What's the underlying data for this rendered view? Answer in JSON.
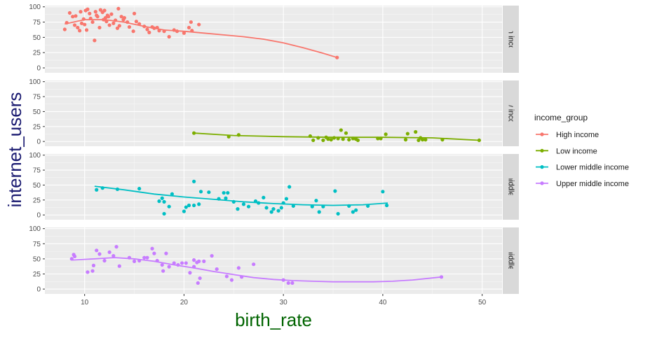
{
  "chart_data": {
    "type": "scatter",
    "xlabel": "birth_rate",
    "ylabel": "internet_users",
    "xlim": [
      6,
      52
    ],
    "ylim": [
      -8,
      102
    ],
    "x_ticks": [
      10,
      20,
      30,
      40,
      50
    ],
    "y_ticks": [
      0,
      25,
      50,
      75,
      100
    ],
    "facet_layout": "rows",
    "grid": true,
    "legend": {
      "title": "income_group",
      "position": "right",
      "entries": [
        "High income",
        "Low income",
        "Lower middle income",
        "Upper middle income"
      ]
    },
    "colors": {
      "High income": "#F8766D",
      "Low income": "#7CAE00",
      "Lower middle income": "#00BFC4",
      "Upper middle income": "#C77CFF",
      "panel_bg": "#EBEBEB",
      "strip_bg": "#D9D9D9",
      "xlabel_color": "#006400",
      "ylabel_color": "#191970"
    },
    "series": [
      {
        "name": "High income",
        "points": [
          [
            8.0,
            63
          ],
          [
            8.2,
            74
          ],
          [
            8.5,
            90
          ],
          [
            8.8,
            84
          ],
          [
            9.0,
            70
          ],
          [
            9.1,
            85
          ],
          [
            9.3,
            66
          ],
          [
            9.5,
            61
          ],
          [
            9.6,
            92
          ],
          [
            9.7,
            73
          ],
          [
            9.9,
            80
          ],
          [
            10.0,
            71
          ],
          [
            10.1,
            94
          ],
          [
            10.2,
            62
          ],
          [
            10.3,
            96
          ],
          [
            10.5,
            89
          ],
          [
            10.6,
            81
          ],
          [
            10.8,
            75
          ],
          [
            11.0,
            45
          ],
          [
            11.1,
            92
          ],
          [
            11.2,
            86
          ],
          [
            11.3,
            84
          ],
          [
            11.5,
            66
          ],
          [
            11.6,
            95
          ],
          [
            11.8,
            91
          ],
          [
            11.9,
            79
          ],
          [
            12.0,
            94
          ],
          [
            12.1,
            82
          ],
          [
            12.2,
            76
          ],
          [
            12.3,
            86
          ],
          [
            12.4,
            84
          ],
          [
            12.5,
            70
          ],
          [
            12.7,
            88
          ],
          [
            12.9,
            73
          ],
          [
            13.1,
            78
          ],
          [
            13.3,
            65
          ],
          [
            13.4,
            97
          ],
          [
            13.5,
            69
          ],
          [
            13.7,
            84
          ],
          [
            13.9,
            79
          ],
          [
            14.0,
            82
          ],
          [
            14.3,
            75
          ],
          [
            14.5,
            67
          ],
          [
            14.9,
            60
          ],
          [
            15.0,
            89
          ],
          [
            15.2,
            76
          ],
          [
            15.5,
            72
          ],
          [
            16.0,
            68
          ],
          [
            16.3,
            63
          ],
          [
            16.5,
            58
          ],
          [
            16.8,
            67
          ],
          [
            17.0,
            65
          ],
          [
            17.3,
            66
          ],
          [
            17.5,
            61
          ],
          [
            18.0,
            60
          ],
          [
            18.5,
            51
          ],
          [
            19.0,
            62
          ],
          [
            19.3,
            60
          ],
          [
            20.0,
            57
          ],
          [
            20.5,
            66
          ],
          [
            20.7,
            75
          ],
          [
            20.8,
            61
          ],
          [
            21.5,
            71
          ],
          [
            35.4,
            17
          ]
        ],
        "fit": [
          [
            8,
            72
          ],
          [
            10,
            79
          ],
          [
            12,
            79
          ],
          [
            14,
            75
          ],
          [
            16,
            68
          ],
          [
            18,
            62
          ],
          [
            20,
            60
          ],
          [
            22,
            57
          ],
          [
            24,
            54
          ],
          [
            26,
            51
          ],
          [
            28,
            47
          ],
          [
            30,
            41
          ],
          [
            32,
            33
          ],
          [
            34,
            24
          ],
          [
            35.4,
            17
          ]
        ]
      },
      {
        "name": "Low income",
        "points": [
          [
            21.0,
            14
          ],
          [
            24.5,
            8
          ],
          [
            25.5,
            11
          ],
          [
            32.7,
            9
          ],
          [
            33.0,
            2
          ],
          [
            33.5,
            6
          ],
          [
            34.0,
            2
          ],
          [
            34.3,
            7
          ],
          [
            34.5,
            4
          ],
          [
            34.8,
            3
          ],
          [
            35.1,
            6
          ],
          [
            35.5,
            5
          ],
          [
            35.8,
            19
          ],
          [
            36.0,
            4
          ],
          [
            36.3,
            14
          ],
          [
            36.6,
            3
          ],
          [
            37.0,
            5
          ],
          [
            37.3,
            4
          ],
          [
            37.5,
            2
          ],
          [
            39.5,
            5
          ],
          [
            39.8,
            5
          ],
          [
            40.3,
            12
          ],
          [
            42.3,
            3
          ],
          [
            42.5,
            13
          ],
          [
            43.3,
            16
          ],
          [
            43.6,
            2
          ],
          [
            43.8,
            6
          ],
          [
            44.0,
            3
          ],
          [
            44.3,
            3
          ],
          [
            46.0,
            3
          ],
          [
            49.7,
            2
          ]
        ],
        "fit": [
          [
            21,
            14
          ],
          [
            25,
            10
          ],
          [
            30,
            8
          ],
          [
            35,
            7
          ],
          [
            40,
            7
          ],
          [
            45,
            6
          ],
          [
            49.7,
            2
          ]
        ]
      },
      {
        "name": "Lower middle income",
        "points": [
          [
            11.2,
            42
          ],
          [
            11.8,
            45
          ],
          [
            13.3,
            43
          ],
          [
            15.5,
            44
          ],
          [
            17.5,
            23
          ],
          [
            17.8,
            28
          ],
          [
            18.0,
            22
          ],
          [
            18.0,
            2
          ],
          [
            18.5,
            14
          ],
          [
            18.8,
            35
          ],
          [
            20.0,
            6
          ],
          [
            20.2,
            13
          ],
          [
            20.5,
            16
          ],
          [
            21.0,
            16
          ],
          [
            21.0,
            56
          ],
          [
            21.5,
            18
          ],
          [
            21.7,
            39
          ],
          [
            22.5,
            38
          ],
          [
            23.5,
            27
          ],
          [
            24.0,
            37
          ],
          [
            24.2,
            28
          ],
          [
            24.4,
            37
          ],
          [
            25.0,
            22
          ],
          [
            25.4,
            10
          ],
          [
            26.0,
            18
          ],
          [
            26.5,
            14
          ],
          [
            27.2,
            23
          ],
          [
            27.5,
            20
          ],
          [
            28.0,
            29
          ],
          [
            28.3,
            12
          ],
          [
            28.8,
            5
          ],
          [
            29.0,
            10
          ],
          [
            29.5,
            7
          ],
          [
            29.8,
            12
          ],
          [
            30.0,
            20
          ],
          [
            30.3,
            27
          ],
          [
            30.6,
            47
          ],
          [
            31.0,
            15
          ],
          [
            32.9,
            14
          ],
          [
            33.3,
            24
          ],
          [
            33.6,
            5
          ],
          [
            34.0,
            14
          ],
          [
            35.2,
            40
          ],
          [
            35.5,
            2
          ],
          [
            36.6,
            15
          ],
          [
            37.0,
            5
          ],
          [
            37.3,
            8
          ],
          [
            38.5,
            15
          ],
          [
            40.0,
            39
          ],
          [
            40.4,
            16
          ]
        ],
        "fit": [
          [
            11,
            48
          ],
          [
            14,
            42
          ],
          [
            17,
            35
          ],
          [
            20,
            30
          ],
          [
            23,
            26
          ],
          [
            26,
            22
          ],
          [
            29,
            19
          ],
          [
            32,
            17
          ],
          [
            35,
            16
          ],
          [
            38,
            17
          ],
          [
            40.5,
            20
          ]
        ]
      },
      {
        "name": "Upper middle income",
        "points": [
          [
            8.7,
            50
          ],
          [
            8.9,
            57
          ],
          [
            9.0,
            54
          ],
          [
            10.3,
            28
          ],
          [
            10.8,
            30
          ],
          [
            10.9,
            39
          ],
          [
            11.2,
            64
          ],
          [
            11.5,
            58
          ],
          [
            12.0,
            47
          ],
          [
            12.5,
            61
          ],
          [
            12.9,
            55
          ],
          [
            13.2,
            70
          ],
          [
            13.5,
            38
          ],
          [
            14.5,
            52
          ],
          [
            15.0,
            46
          ],
          [
            15.5,
            47
          ],
          [
            16.0,
            52
          ],
          [
            16.3,
            52
          ],
          [
            16.8,
            67
          ],
          [
            17.0,
            59
          ],
          [
            17.3,
            47
          ],
          [
            17.8,
            40
          ],
          [
            17.9,
            30
          ],
          [
            18.2,
            59
          ],
          [
            18.5,
            37
          ],
          [
            19.0,
            43
          ],
          [
            19.4,
            40
          ],
          [
            19.8,
            43
          ],
          [
            20.2,
            43
          ],
          [
            20.6,
            27
          ],
          [
            21.0,
            37
          ],
          [
            21.0,
            48
          ],
          [
            21.3,
            44
          ],
          [
            21.4,
            10
          ],
          [
            21.5,
            46
          ],
          [
            21.6,
            18
          ],
          [
            22.0,
            46
          ],
          [
            22.8,
            55
          ],
          [
            23.3,
            33
          ],
          [
            24.3,
            21
          ],
          [
            24.8,
            15
          ],
          [
            25.5,
            35
          ],
          [
            25.8,
            20
          ],
          [
            27.0,
            41
          ],
          [
            30.0,
            15
          ],
          [
            30.5,
            10
          ],
          [
            30.9,
            10
          ],
          [
            45.9,
            20
          ]
        ],
        "fit": [
          [
            8.7,
            48
          ],
          [
            11,
            50
          ],
          [
            13,
            52
          ],
          [
            15,
            50
          ],
          [
            17,
            46
          ],
          [
            19,
            40
          ],
          [
            21,
            35
          ],
          [
            23,
            29
          ],
          [
            25,
            24
          ],
          [
            27,
            19
          ],
          [
            29,
            16
          ],
          [
            31,
            14
          ],
          [
            33,
            13
          ],
          [
            35,
            12
          ],
          [
            37,
            12
          ],
          [
            39,
            12
          ],
          [
            41,
            13
          ],
          [
            43,
            15
          ],
          [
            45.9,
            20
          ]
        ]
      }
    ]
  }
}
